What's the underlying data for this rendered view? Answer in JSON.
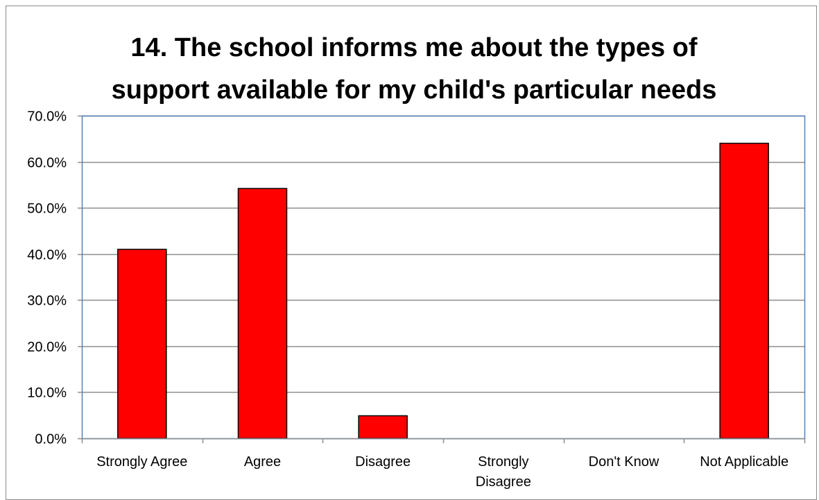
{
  "chart_data": {
    "type": "bar",
    "title_lines": [
      "14. The school informs me about the types of",
      "support available for my child's particular needs"
    ],
    "categories": [
      [
        "Strongly Agree"
      ],
      [
        "Agree"
      ],
      [
        "Disagree"
      ],
      [
        "Strongly",
        "Disagree"
      ],
      [
        "Don't Know"
      ],
      [
        "Not Applicable"
      ]
    ],
    "values": [
      41.0,
      54.2,
      4.9,
      0.0,
      0.0,
      64.0
    ],
    "ylim": [
      0,
      70
    ],
    "yticks": [
      0,
      10,
      20,
      30,
      40,
      50,
      60,
      70
    ],
    "ytick_labels": [
      "0.0%",
      "10.0%",
      "20.0%",
      "30.0%",
      "40.0%",
      "50.0%",
      "60.0%",
      "70.0%"
    ],
    "grid": true,
    "legend": "none",
    "colors": {
      "bar": "#ff0000",
      "bar_border": "#000000",
      "grid": "#8c8c8c",
      "plot_border": "#4f81bd",
      "axis": "#8c8c8c"
    }
  }
}
